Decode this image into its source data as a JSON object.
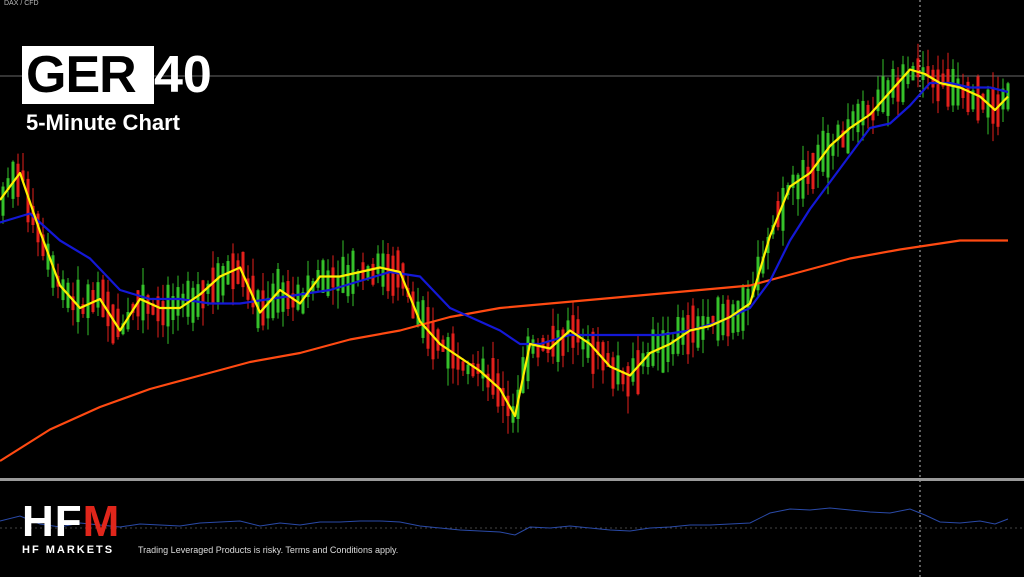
{
  "symbol_label": "DAX / CFD",
  "title": {
    "highlighted": "GER",
    "rest": "40"
  },
  "subtitle": "5-Minute Chart",
  "logo": {
    "main_white": "HF",
    "main_red": "M",
    "sub": "HF MARKETS"
  },
  "disclaimer": "Trading Leveraged Products is risky. Terms and Conditions apply.",
  "colors": {
    "background": "#000000",
    "bull": "#35c12a",
    "bear": "#e3201b",
    "ma_fast": "#ffef00",
    "ma_slow": "#1418d6",
    "ma_long": "#ff4a12",
    "oscillator": "#2a4aa8",
    "grid_line": "#8a8a8a"
  },
  "chart_data": {
    "type": "line",
    "title": "GER40",
    "subtitle": "5-Minute Chart",
    "xlabel": "",
    "ylabel": "",
    "ylim": [
      0,
      100
    ],
    "grid": false,
    "series": [
      {
        "color": "#ffef00",
        "x": [
          0,
          20,
          40,
          60,
          80,
          100,
          120,
          140,
          160,
          180,
          200,
          220,
          240,
          260,
          280,
          300,
          320,
          340,
          360,
          380,
          400,
          420,
          440,
          460,
          480,
          500,
          515,
          530,
          550,
          570,
          590,
          610,
          630,
          650,
          670,
          690,
          710,
          730,
          750,
          770,
          790,
          810,
          830,
          850,
          870,
          890,
          910,
          925,
          940,
          960,
          980,
          995,
          1008
        ],
        "values": [
          60,
          66,
          53,
          41,
          36,
          38,
          31,
          38,
          36,
          36,
          39,
          43,
          45,
          35,
          40,
          37,
          43,
          43,
          44,
          45,
          44,
          33,
          28,
          25,
          22,
          18,
          12,
          28,
          27,
          31,
          28,
          23,
          21,
          26,
          28,
          31,
          32,
          34,
          37,
          52,
          63,
          66,
          72,
          76,
          79,
          84,
          89,
          88,
          86,
          85,
          83,
          80,
          83
        ]
      },
      {
        "color": "#1418d6",
        "x": [
          0,
          30,
          60,
          90,
          120,
          150,
          180,
          210,
          240,
          270,
          300,
          330,
          360,
          390,
          420,
          450,
          480,
          500,
          520,
          540,
          570,
          600,
          630,
          660,
          690,
          720,
          750,
          770,
          790,
          810,
          830,
          850,
          870,
          890,
          910,
          930,
          950,
          970,
          990,
          1008
        ],
        "values": [
          55,
          57,
          51,
          47,
          40,
          38,
          38,
          37,
          37,
          38,
          39,
          40,
          42,
          44,
          43,
          36,
          33,
          31,
          28,
          28,
          30,
          30,
          30,
          30,
          31,
          33,
          36,
          42,
          51,
          58,
          64,
          70,
          76,
          77,
          81,
          86,
          86,
          85,
          85,
          84
        ]
      },
      {
        "color": "#ff4a12",
        "x": [
          0,
          50,
          100,
          150,
          200,
          250,
          300,
          350,
          400,
          450,
          500,
          550,
          600,
          650,
          700,
          750,
          800,
          850,
          900,
          930,
          960,
          980,
          1008
        ],
        "values": [
          2,
          9,
          14,
          18,
          21,
          24,
          26,
          29,
          31,
          34,
          36,
          37,
          38,
          39,
          40,
          41,
          44,
          47,
          49,
          50,
          51,
          51,
          51
        ]
      }
    ],
    "oscillator": {
      "color": "#2a4aa8",
      "x": [
        0,
        20,
        40,
        60,
        80,
        100,
        120,
        140,
        160,
        180,
        200,
        220,
        240,
        260,
        280,
        300,
        320,
        340,
        360,
        380,
        400,
        420,
        440,
        460,
        480,
        500,
        515,
        530,
        550,
        570,
        590,
        610,
        630,
        650,
        670,
        690,
        710,
        730,
        750,
        770,
        790,
        810,
        830,
        850,
        870,
        890,
        910,
        925,
        940,
        960,
        980,
        995,
        1008
      ],
      "values": [
        48,
        58,
        42,
        36,
        44,
        40,
        36,
        42,
        40,
        38,
        44,
        46,
        48,
        38,
        44,
        40,
        46,
        46,
        48,
        48,
        46,
        38,
        34,
        30,
        28,
        26,
        20,
        36,
        34,
        38,
        34,
        30,
        28,
        34,
        36,
        40,
        40,
        42,
        44,
        64,
        72,
        70,
        74,
        70,
        66,
        64,
        72,
        60,
        46,
        44,
        48,
        42,
        52
      ]
    }
  }
}
